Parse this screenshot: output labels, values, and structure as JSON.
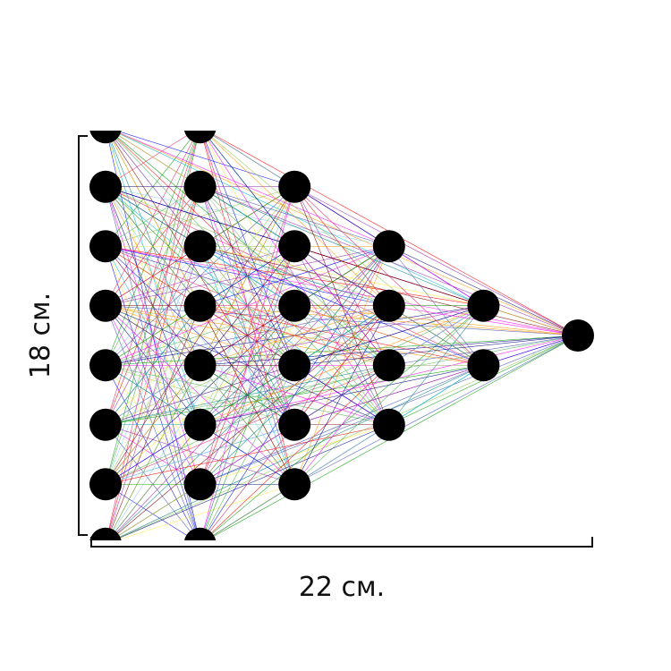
{
  "diagram": {
    "type": "neural-network",
    "layers": [
      8,
      8,
      6,
      4,
      2,
      1
    ],
    "node_color": "#000000",
    "edge_colors": [
      "#ff0000",
      "#00a000",
      "#0000ff",
      "#ff00ff",
      "#00bcd4",
      "#ff9800",
      "#8bc34a",
      "#9c27b0",
      "#4caf50",
      "#e91e63",
      "#3f51b5",
      "#ffeb3b",
      "#000080",
      "#008080",
      "#800000",
      "#87ceeb"
    ]
  },
  "dimensions": {
    "height_label": "18 см.",
    "width_label": "22 см."
  }
}
